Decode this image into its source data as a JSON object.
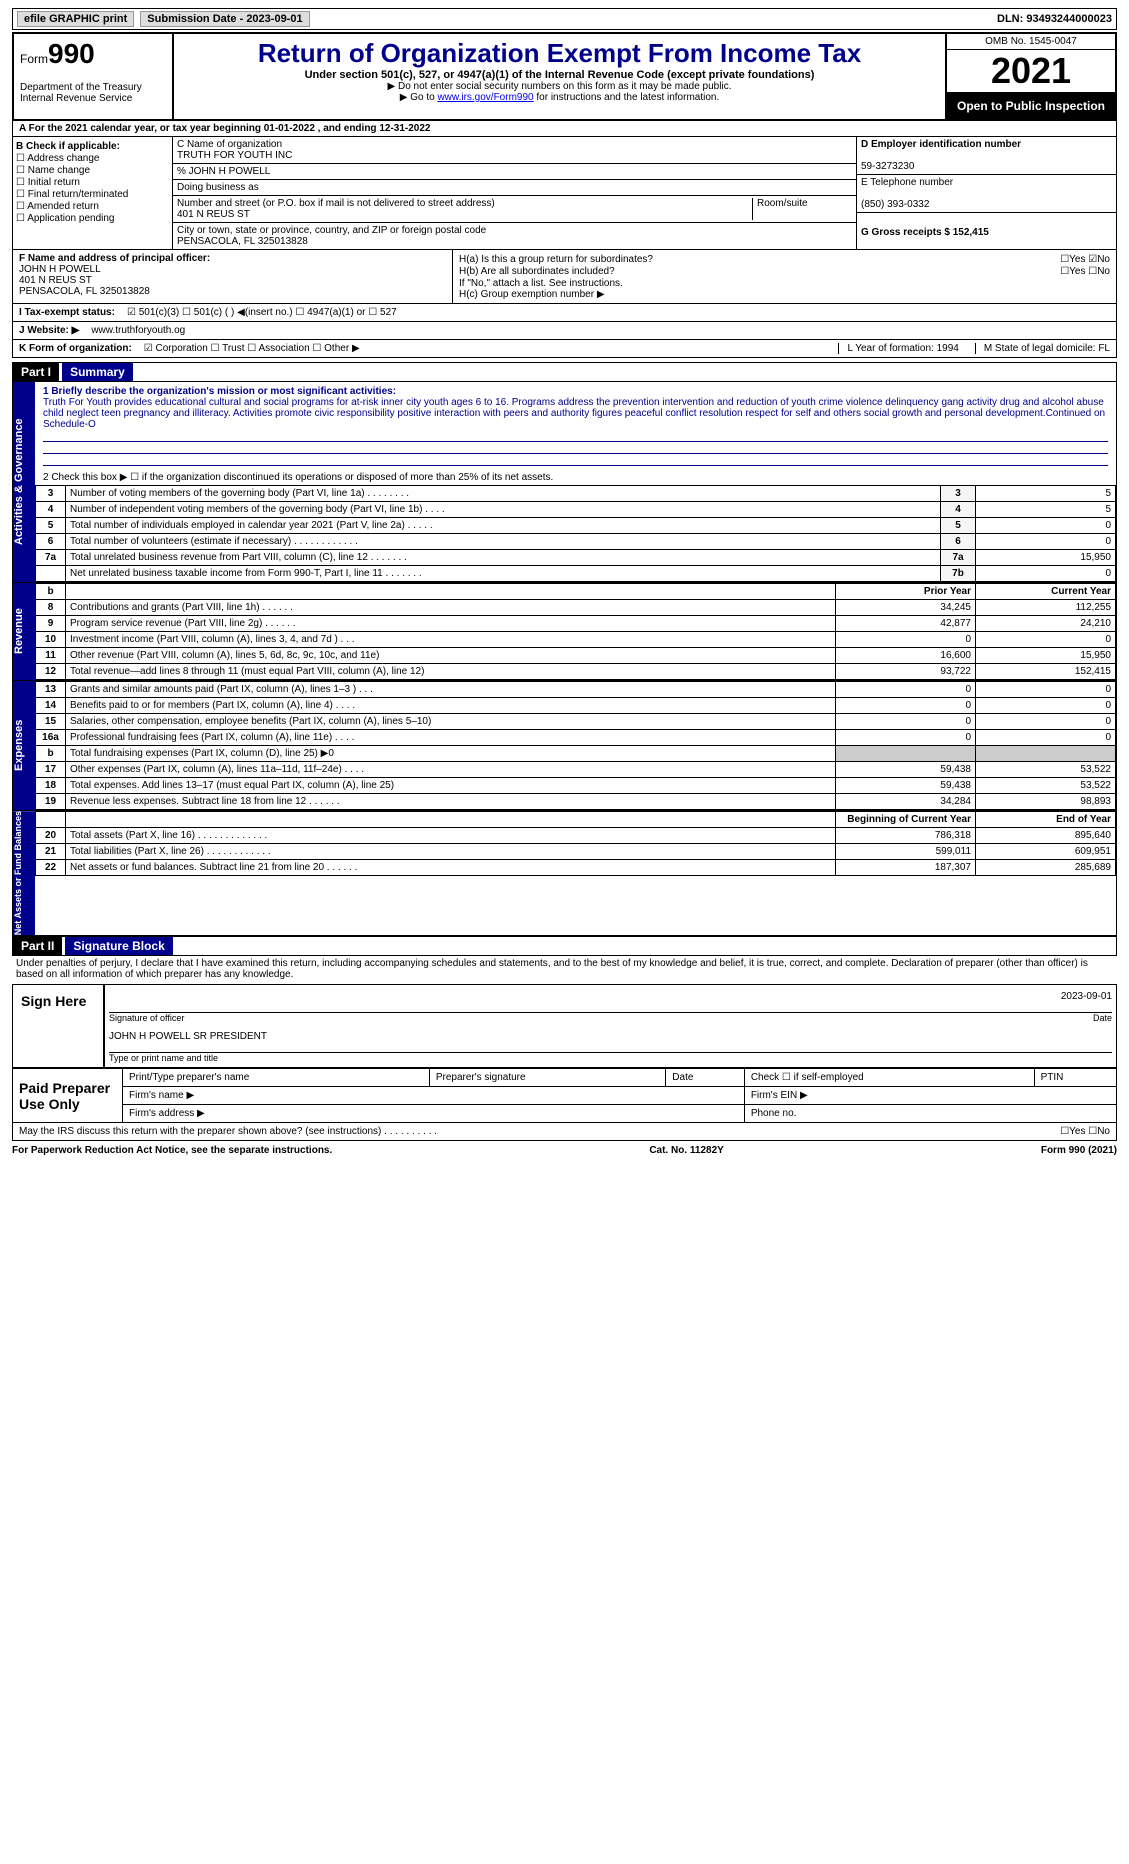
{
  "topbar": {
    "efile": "efile GRAPHIC print",
    "submission": "Submission Date - 2023-09-01",
    "dln": "DLN: 93493244000023"
  },
  "head": {
    "form_label": "Form",
    "form_no": "990",
    "dept": "Department of the Treasury",
    "irs": "Internal Revenue Service",
    "title": "Return of Organization Exempt From Income Tax",
    "subtitle": "Under section 501(c), 527, or 4947(a)(1) of the Internal Revenue Code (except private foundations)",
    "note1": "▶ Do not enter social security numbers on this form as it may be made public.",
    "note2_pre": "▶ Go to ",
    "note2_link": "www.irs.gov/Form990",
    "note2_post": " for instructions and the latest information.",
    "omb": "OMB No. 1545-0047",
    "year": "2021",
    "open": "Open to Public Inspection"
  },
  "rowA": "A For the 2021 calendar year, or tax year beginning 01-01-2022   , and ending 12-31-2022",
  "colB": {
    "hdr": "B Check if applicable:",
    "items": [
      "☐ Address change",
      "☐ Name change",
      "☐ Initial return",
      "☐ Final return/terminated",
      "☐ Amended return",
      "☐ Application pending"
    ]
  },
  "colC": {
    "name_lbl": "C Name of organization",
    "name": "TRUTH FOR YOUTH INC",
    "care": "% JOHN H POWELL",
    "dba_lbl": "Doing business as",
    "street_lbl": "Number and street (or P.O. box if mail is not delivered to street address)",
    "street": "401 N REUS ST",
    "room_lbl": "Room/suite",
    "city_lbl": "City or town, state or province, country, and ZIP or foreign postal code",
    "city": "PENSACOLA, FL  325013828"
  },
  "colD": {
    "ein_lbl": "D Employer identification number",
    "ein": "59-3273230",
    "tel_lbl": "E Telephone number",
    "tel": "(850) 393-0332",
    "gross": "G Gross receipts $ 152,415"
  },
  "colF": {
    "lbl": "F  Name and address of principal officer:",
    "name": "JOHN H POWELL",
    "addr1": "401 N REUS ST",
    "addr2": "PENSACOLA, FL  325013828"
  },
  "colH": {
    "ha": "H(a)  Is this a group return for subordinates?",
    "ha_ans": "☐Yes ☑No",
    "hb": "H(b)  Are all subordinates included?",
    "hb_ans": "☐Yes ☐No",
    "hb_note": "If \"No,\" attach a list. See instructions.",
    "hc": "H(c)  Group exemption number ▶"
  },
  "rowI": {
    "lbl": "I   Tax-exempt status:",
    "opts": "☑ 501(c)(3)   ☐  501(c) (  ) ◀(insert no.)    ☐  4947(a)(1) or   ☐  527"
  },
  "rowJ": {
    "lbl": "J   Website: ▶",
    "val": "www.truthforyouth.og"
  },
  "rowK": {
    "lbl": "K Form of organization:",
    "opts": "☑ Corporation ☐ Trust ☐ Association ☐ Other ▶",
    "yof": "L Year of formation: 1994",
    "state": "M State of legal domicile: FL"
  },
  "part1": {
    "hdr": "Part I",
    "title": "Summary",
    "q1_lbl": "1  Briefly describe the organization's mission or most significant activities:",
    "q1_text": "Truth For Youth provides educational cultural and social programs for at-risk inner city youth ages 6 to 16. Programs address the prevention intervention and reduction of youth crime violence delinquency gang activity drug and alcohol abuse child neglect teen pregnancy and illiteracy. Activities promote civic responsibility positive interaction with peers and authority figures peaceful conflict resolution respect for self and others social growth and personal development.Continued on Schedule-O",
    "q2": "2     Check this box ▶ ☐  if the organization discontinued its operations or disposed of more than 25% of its net assets.",
    "side1": "Activities & Governance",
    "side2": "Revenue",
    "side3": "Expenses",
    "side4": "Net Assets or Fund Balances",
    "rows_gov": [
      {
        "n": "3",
        "d": "Number of voting members of the governing body (Part VI, line 1a)   .    .    .    .    .    .    .    .",
        "l": "3",
        "v": "5"
      },
      {
        "n": "4",
        "d": "Number of independent voting members of the governing body (Part VI, line 1b)   .    .    .    .",
        "l": "4",
        "v": "5"
      },
      {
        "n": "5",
        "d": "Total number of individuals employed in calendar year 2021 (Part V, line 2a)   .    .    .    .    .",
        "l": "5",
        "v": "0"
      },
      {
        "n": "6",
        "d": "Total number of volunteers (estimate if necessary)   .    .    .    .    .    .    .    .    .    .    .    .",
        "l": "6",
        "v": "0"
      },
      {
        "n": "7a",
        "d": "Total unrelated business revenue from Part VIII, column (C), line 12   .    .    .    .    .    .    .",
        "l": "7a",
        "v": "15,950"
      },
      {
        "n": "",
        "d": "Net unrelated business taxable income from Form 990-T, Part I, line 11   .    .    .    .    .    .    .",
        "l": "7b",
        "v": "0"
      }
    ],
    "hdr_py": "Prior Year",
    "hdr_cy": "Current Year",
    "rows_rev": [
      {
        "n": "8",
        "d": "Contributions and grants (Part VIII, line 1h)   .    .    .    .    .    .",
        "py": "34,245",
        "cy": "112,255"
      },
      {
        "n": "9",
        "d": "Program service revenue (Part VIII, line 2g)   .    .    .    .    .    .",
        "py": "42,877",
        "cy": "24,210"
      },
      {
        "n": "10",
        "d": "Investment income (Part VIII, column (A), lines 3, 4, and 7d )   .    .    .",
        "py": "0",
        "cy": "0"
      },
      {
        "n": "11",
        "d": "Other revenue (Part VIII, column (A), lines 5, 6d, 8c, 9c, 10c, and 11e)",
        "py": "16,600",
        "cy": "15,950"
      },
      {
        "n": "12",
        "d": "Total revenue—add lines 8 through 11 (must equal Part VIII, column (A), line 12)",
        "py": "93,722",
        "cy": "152,415"
      }
    ],
    "rows_exp": [
      {
        "n": "13",
        "d": "Grants and similar amounts paid (Part IX, column (A), lines 1–3 )   .    .    .",
        "py": "0",
        "cy": "0"
      },
      {
        "n": "14",
        "d": "Benefits paid to or for members (Part IX, column (A), line 4)   .    .    .    .",
        "py": "0",
        "cy": "0"
      },
      {
        "n": "15",
        "d": "Salaries, other compensation, employee benefits (Part IX, column (A), lines 5–10)",
        "py": "0",
        "cy": "0"
      },
      {
        "n": "16a",
        "d": "Professional fundraising fees (Part IX, column (A), line 11e)   .    .    .    .",
        "py": "0",
        "cy": "0"
      },
      {
        "n": "b",
        "d": "Total fundraising expenses (Part IX, column (D), line 25) ▶0",
        "py": "",
        "cy": ""
      },
      {
        "n": "17",
        "d": "Other expenses (Part IX, column (A), lines 11a–11d, 11f–24e)   .    .    .    .",
        "py": "59,438",
        "cy": "53,522"
      },
      {
        "n": "18",
        "d": "Total expenses. Add lines 13–17 (must equal Part IX, column (A), line 25)",
        "py": "59,438",
        "cy": "53,522"
      },
      {
        "n": "19",
        "d": "Revenue less expenses. Subtract line 18 from line 12   .    .    .    .    .    .",
        "py": "34,284",
        "cy": "98,893"
      }
    ],
    "hdr_boy": "Beginning of Current Year",
    "hdr_eoy": "End of Year",
    "rows_net": [
      {
        "n": "20",
        "d": "Total assets (Part X, line 16)   .    .    .    .    .    .    .    .    .    .    .    .    .",
        "py": "786,318",
        "cy": "895,640"
      },
      {
        "n": "21",
        "d": "Total liabilities (Part X, line 26)   .    .    .    .    .    .    .    .    .    .    .    .",
        "py": "599,011",
        "cy": "609,951"
      },
      {
        "n": "22",
        "d": "Net assets or fund balances. Subtract line 21 from line 20 .    .    .    .    .    .",
        "py": "187,307",
        "cy": "285,689"
      }
    ]
  },
  "part2": {
    "hdr": "Part II",
    "title": "Signature Block",
    "decl": "Under penalties of perjury, I declare that I have examined this return, including accompanying schedules and statements, and to the best of my knowledge and belief, it is true, correct, and complete. Declaration of preparer (other than officer) is based on all information of which preparer has any knowledge.",
    "sign_lbl": "Sign Here",
    "sig_of": "Signature of officer",
    "sig_date": "2023-09-01",
    "date_lbl": "Date",
    "name_title": "JOHN H POWELL SR  PRESIDENT",
    "type_lbl": "Type or print name and title",
    "paid_lbl": "Paid Preparer Use Only",
    "pp_name": "Print/Type preparer's name",
    "pp_sig": "Preparer's signature",
    "pp_check": "Check ☐ if self-employed",
    "ptin": "PTIN",
    "firm_name": "Firm's name    ▶",
    "firm_ein": "Firm's EIN ▶",
    "firm_addr": "Firm's address ▶",
    "phone": "Phone no.",
    "discuss": "May the IRS discuss this return with the preparer shown above? (see instructions)   .    .    .    .    .    .    .    .    .    .",
    "discuss_ans": "☐Yes  ☐No"
  },
  "foot": {
    "left": "For Paperwork Reduction Act Notice, see the separate instructions.",
    "mid": "Cat. No. 11282Y",
    "right": "Form 990 (2021)"
  }
}
